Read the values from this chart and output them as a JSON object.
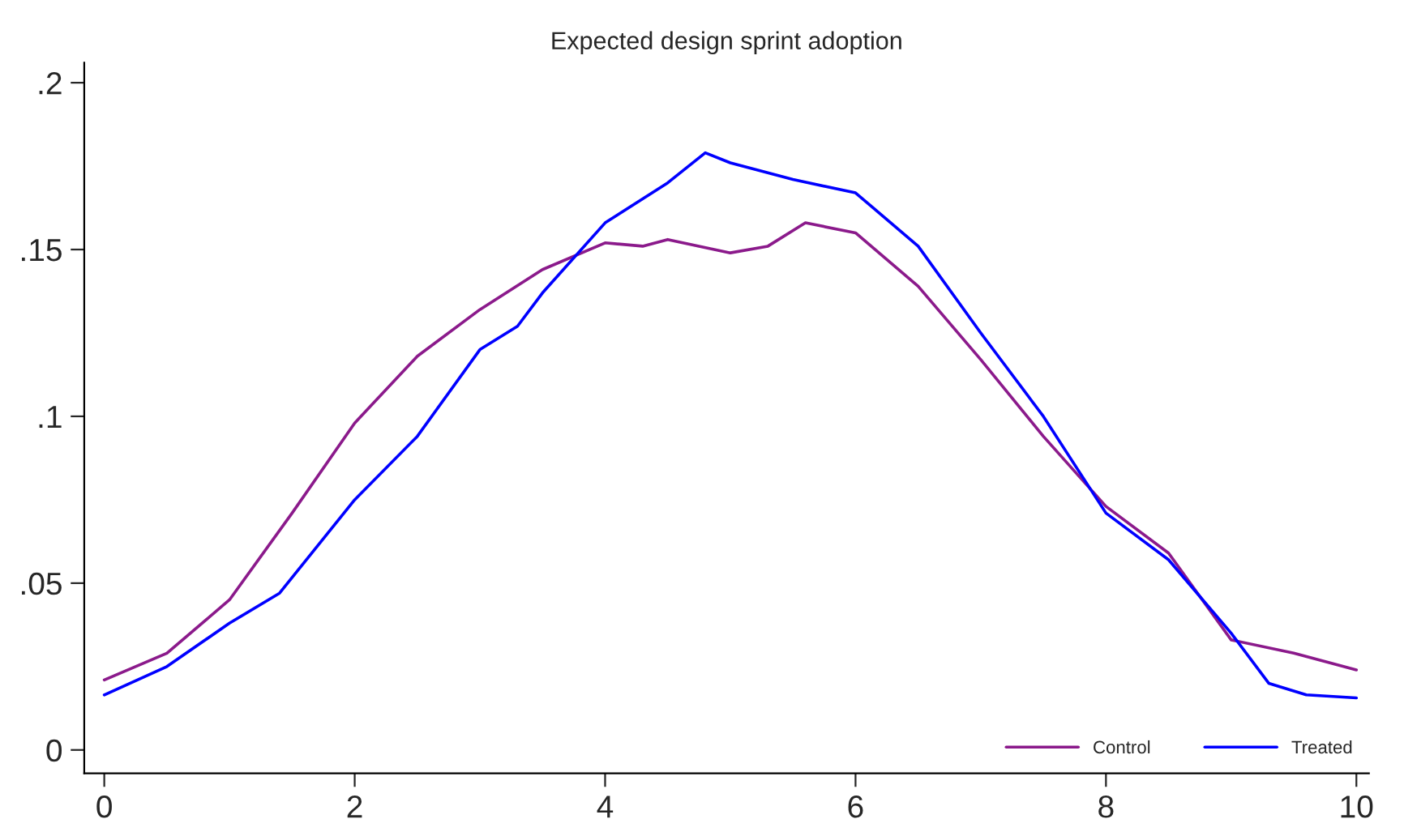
{
  "chart_data": {
    "type": "line",
    "title": "Expected design sprint adoption",
    "xlim": [
      -0.16,
      10.1
    ],
    "ylim": [
      -0.007,
      0.206
    ],
    "xticks": [
      0,
      2,
      4,
      6,
      8,
      10
    ],
    "yticks": [
      {
        "value": 0,
        "label": "0"
      },
      {
        "value": 0.05,
        "label": ".05"
      },
      {
        "value": 0.1,
        "label": ".1"
      },
      {
        "value": 0.15,
        "label": ".15"
      },
      {
        "value": 0.2,
        "label": ".2"
      }
    ],
    "grid": false,
    "legend": "bottom right",
    "marker": "none",
    "line_style": "solid",
    "series": [
      {
        "name": "Control",
        "color": "#8b1a8b",
        "x": [
          0,
          0.5,
          1,
          1.5,
          2,
          2.5,
          3,
          3.5,
          4,
          4.3,
          4.5,
          5,
          5.3,
          5.6,
          6,
          6.5,
          7,
          7.5,
          8,
          8.5,
          9,
          9.5,
          10
        ],
        "values": [
          0.021,
          0.029,
          0.045,
          0.071,
          0.098,
          0.118,
          0.132,
          0.144,
          0.152,
          0.151,
          0.153,
          0.149,
          0.151,
          0.158,
          0.155,
          0.139,
          0.117,
          0.094,
          0.073,
          0.059,
          0.033,
          0.029,
          0.024
        ]
      },
      {
        "name": "Treated",
        "color": "#0000ff",
        "x": [
          0,
          0.5,
          1,
          1.4,
          2,
          2.5,
          3,
          3.3,
          3.5,
          4,
          4.5,
          4.8,
          5,
          5.5,
          6,
          6.5,
          7,
          7.5,
          8,
          8.5,
          9,
          9.3,
          9.6,
          10
        ],
        "values": [
          0.0165,
          0.025,
          0.038,
          0.047,
          0.075,
          0.094,
          0.12,
          0.127,
          0.137,
          0.158,
          0.17,
          0.179,
          0.176,
          0.171,
          0.167,
          0.151,
          0.125,
          0.1,
          0.071,
          0.057,
          0.035,
          0.02,
          0.0165,
          0.0156
        ]
      }
    ]
  }
}
